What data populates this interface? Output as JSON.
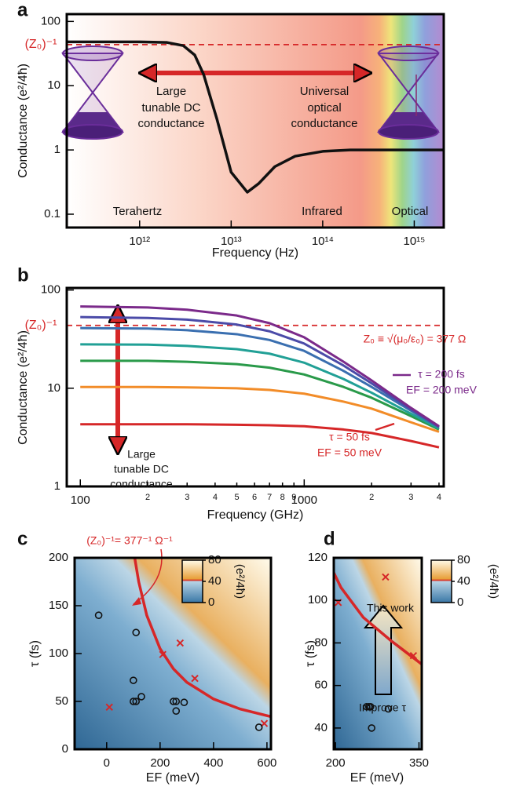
{
  "chart_data": [
    {
      "type": "line",
      "panel_label": "a",
      "xlabel": "Frequency (Hz)",
      "ylabel": "Conductance (e²/4ħ)",
      "log_x": true,
      "log_y": true,
      "xlim": [
        160000000000.0,
        2100000000000000.0
      ],
      "ylim": [
        0.062,
        130
      ],
      "xticks": [
        {
          "value": 1000000000000.0,
          "label": "10¹²"
        },
        {
          "value": 10000000000000.0,
          "label": "10¹³"
        },
        {
          "value": 100000000000000.0,
          "label": "10¹⁴"
        },
        {
          "value": 1000000000000000.0,
          "label": "10¹⁵"
        }
      ],
      "yticks": [
        0.1,
        1,
        10,
        100
      ],
      "series": [
        {
          "color": "#111111",
          "x": [
            160000000000.0,
            1000000000000.0,
            2000000000000.0,
            3000000000000.0,
            4000000000000.0,
            5000000000000.0,
            7000000000000.0,
            10000000000000.0,
            15000000000000.0,
            20000000000000.0,
            30000000000000.0,
            50000000000000.0,
            100000000000000.0,
            200000000000000.0,
            1000000000000000.0,
            2100000000000000.0
          ],
          "values": [
            48,
            48,
            47,
            42,
            30,
            15,
            3,
            0.45,
            0.22,
            0.3,
            0.55,
            0.8,
            0.95,
            1,
            1,
            1
          ]
        }
      ],
      "reference_line": {
        "value": 43.6,
        "label": "(Z₀)⁻¹",
        "color": "#d62728"
      },
      "annotations": [
        {
          "text": "Large",
          "color": "#111111"
        },
        {
          "text": "tunable DC",
          "color": "#111111"
        },
        {
          "text": "conductance",
          "color": "#111111"
        },
        {
          "text": "Universal",
          "color": "#111111"
        },
        {
          "text": "optical",
          "color": "#111111"
        },
        {
          "text": "conductance",
          "color": "#111111"
        },
        {
          "text": "Terahertz",
          "color": "#111111"
        },
        {
          "text": "Infrared",
          "color": "#111111"
        },
        {
          "text": "Optical",
          "color": "#111111"
        }
      ]
    },
    {
      "type": "line",
      "panel_label": "b",
      "xlabel": "Frequency (GHz)",
      "ylabel": "Conductance (e²/4ħ)",
      "log_x": true,
      "log_y": true,
      "xlim": [
        87,
        4200
      ],
      "ylim": [
        1,
        105
      ],
      "xticks": [
        100,
        {
          "value": 200,
          "label": "2"
        },
        {
          "value": 300,
          "label": "3"
        },
        {
          "value": 400,
          "label": "4"
        },
        {
          "value": 500,
          "label": "5"
        },
        {
          "value": 600,
          "label": "6"
        },
        {
          "value": 700,
          "label": "7"
        },
        {
          "value": 800,
          "label": "8"
        },
        {
          "value": 900,
          "label": "9"
        },
        1000,
        {
          "value": 2000,
          "label": "2"
        },
        {
          "value": 3000,
          "label": "3"
        },
        {
          "value": 4000,
          "label": "4"
        }
      ],
      "yticks": [
        1,
        10,
        100
      ],
      "series": [
        {
          "color": "#d62728",
          "x": [
            100,
            200,
            300,
            500,
            700,
            1000,
            1500,
            2000,
            3000,
            4000
          ],
          "values": [
            4.3,
            4.3,
            4.3,
            4.25,
            4.2,
            4.1,
            3.8,
            3.5,
            2.9,
            2.5
          ]
        },
        {
          "color": "#f28c28",
          "x": [
            100,
            200,
            300,
            500,
            700,
            1000,
            1500,
            2000,
            3000,
            4000
          ],
          "values": [
            10.3,
            10.3,
            10.2,
            10,
            9.6,
            8.8,
            7.3,
            6.2,
            4.5,
            3.6
          ]
        },
        {
          "color": "#2a9a4a",
          "x": [
            100,
            200,
            300,
            500,
            700,
            1000,
            1500,
            2000,
            3000,
            4000
          ],
          "values": [
            19,
            19,
            18.6,
            17.6,
            16.2,
            13.8,
            10.3,
            8,
            5.2,
            3.8
          ]
        },
        {
          "color": "#21a096",
          "x": [
            100,
            200,
            300,
            500,
            700,
            1000,
            1500,
            2000,
            3000,
            4000
          ],
          "values": [
            28,
            27.8,
            27,
            25,
            22.5,
            18.2,
            12.4,
            9,
            5.5,
            3.9
          ]
        },
        {
          "color": "#3a6fb0",
          "x": [
            100,
            200,
            300,
            500,
            700,
            1000,
            1500,
            2000,
            3000,
            4000
          ],
          "values": [
            41,
            40.5,
            39,
            35.5,
            31,
            24,
            15,
            10.3,
            5.9,
            4.0
          ]
        },
        {
          "color": "#4b4ba8",
          "x": [
            100,
            200,
            300,
            500,
            700,
            1000,
            1500,
            2000,
            3000,
            4000
          ],
          "values": [
            53,
            52,
            50,
            44.5,
            38,
            28.5,
            17,
            11.2,
            6.1,
            4.05
          ]
        },
        {
          "color": "#7b2a8a",
          "x": [
            100,
            200,
            300,
            500,
            700,
            1000,
            1500,
            2000,
            3000,
            4000
          ],
          "values": [
            68,
            66.5,
            63,
            55,
            46,
            33,
            18.6,
            12,
            6.3,
            4.1
          ]
        }
      ],
      "reference_line": {
        "value": 43.6,
        "label": "(Z₀)⁻¹",
        "color": "#d62728"
      },
      "annotations": [
        {
          "text": "Z₀ ≡ √(μ₀/ε₀) = 377 Ω",
          "color": "#d62728"
        },
        {
          "text": "τ = 200 fs",
          "color": "#7b2a8a"
        },
        {
          "text": "EF = 200 meV",
          "color": "#7b2a8a"
        },
        {
          "text": "τ = 50 fs",
          "color": "#d62728"
        },
        {
          "text": "EF = 50 meV",
          "color": "#d62728"
        },
        {
          "text": "Large",
          "color": "#111111"
        },
        {
          "text": "tunable DC",
          "color": "#111111"
        },
        {
          "text": "conductance",
          "color": "#111111"
        }
      ]
    },
    {
      "type": "scatter",
      "panel_label": "c",
      "xlabel": "EF (meV)",
      "ylabel": "τ (fs)",
      "log_x": false,
      "log_y": false,
      "xlim": [
        -120,
        615
      ],
      "ylim": [
        0,
        200
      ],
      "xticks": [
        0,
        200,
        400,
        600
      ],
      "yticks": [
        0,
        50,
        100,
        150,
        200
      ],
      "curve": {
        "color": "#d62728",
        "x": [
          105,
          120,
          150,
          200,
          250,
          300,
          400,
          500,
          615
        ],
        "values": [
          200,
          175,
          140,
          105,
          84,
          70,
          52.5,
          42,
          34.1
        ]
      },
      "series": [
        {
          "marker": "x",
          "color": "#d62728",
          "x": [
            10,
            210,
            275,
            330,
            590
          ],
          "values": [
            44,
            99,
            111,
            74,
            27
          ]
        },
        {
          "marker": "o",
          "color": "#111111",
          "x": [
            -30,
            100,
            110,
            100,
            110,
            130,
            250,
            260,
            260,
            290,
            570
          ],
          "values": [
            140,
            72,
            122,
            50,
            50,
            55,
            50,
            50,
            40,
            49,
            23
          ]
        }
      ],
      "colorbar": {
        "lim": [
          0,
          80
        ],
        "ticks": [
          0,
          40,
          80
        ],
        "label": "(e²/4ħ)"
      },
      "annotations": [
        {
          "text": "(Z₀)⁻¹= 377⁻¹ Ω⁻¹",
          "color": "#d62728"
        }
      ]
    },
    {
      "type": "scatter",
      "panel_label": "d",
      "xlabel": "EF (meV)",
      "ylabel": "τ (fs)",
      "log_x": false,
      "log_y": false,
      "xlim": [
        197,
        355
      ],
      "ylim": [
        30,
        120
      ],
      "xticks": [
        200,
        350
      ],
      "yticks": [
        40,
        60,
        80,
        100,
        120
      ],
      "curve": {
        "color": "#d62728",
        "x": [
          197,
          210,
          250,
          300,
          355
        ],
        "values": [
          113,
          106,
          92,
          81,
          70
        ]
      },
      "series": [
        {
          "marker": "x",
          "color": "#d62728",
          "x": [
            205,
            290,
            340
          ],
          "values": [
            99,
            111,
            74
          ]
        },
        {
          "marker": "o",
          "color": "#111111",
          "x": [
            256,
            260,
            263,
            265,
            295
          ],
          "values": [
            50,
            50,
            50,
            40,
            49
          ]
        }
      ],
      "colorbar": {
        "lim": [
          0,
          80
        ],
        "ticks": [
          0,
          40,
          80
        ],
        "label": "(e²/4ħ)"
      },
      "annotations": [
        {
          "text": "This work",
          "color": "#111111"
        },
        {
          "text": "Improve τ",
          "color": "#111111"
        }
      ]
    }
  ]
}
